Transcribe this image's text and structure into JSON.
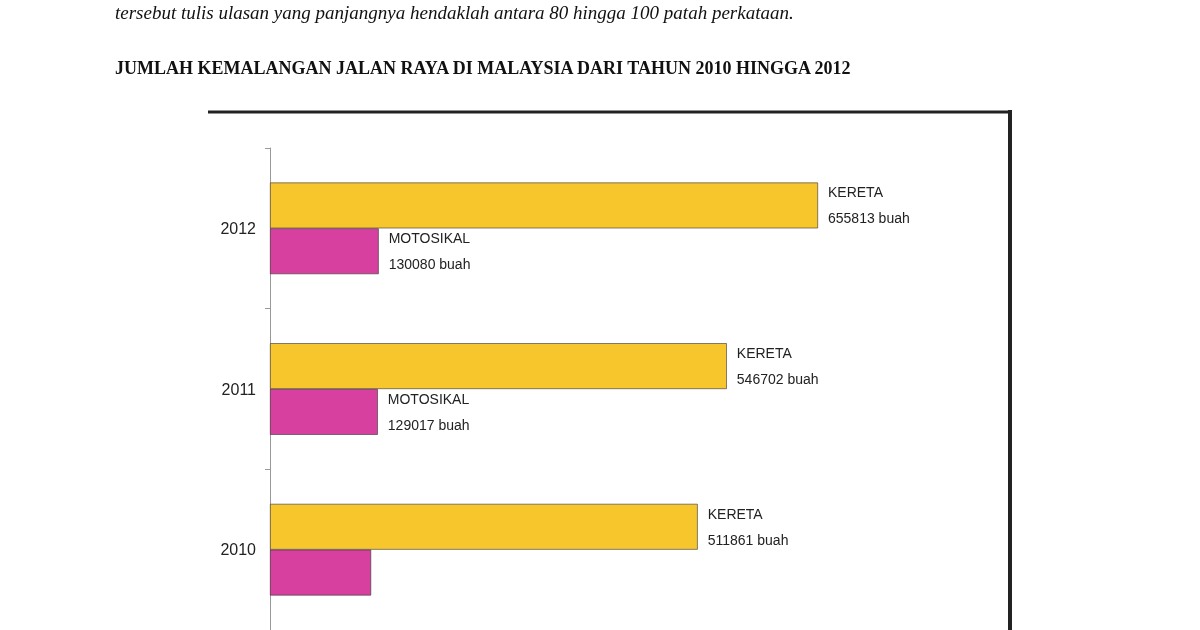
{
  "chart_data": {
    "type": "bar",
    "orientation": "horizontal",
    "title": "JUMLAH KEMALANGAN JALAN RAYA DI MALAYSIA DARI TAHUN 2010 HINGGA 2012",
    "annotations": [
      "tersebut tulis ulasan yang panjangnya hendaklah antara 80 hingga 100 patah perkataan."
    ],
    "categories": [
      "2012",
      "2011",
      "2010"
    ],
    "series": [
      {
        "name": "KERETA",
        "color": "#f7c52c",
        "values": [
          655813,
          546702,
          511861
        ],
        "value_labels": [
          "655813 buah",
          "546702 buah",
          "511861 buah"
        ]
      },
      {
        "name": "MOTOSIKAL",
        "color": "#d7409f",
        "values": [
          130080,
          129017,
          121000
        ],
        "value_labels": [
          "130080 buah",
          "129017 buah",
          null
        ]
      }
    ],
    "grid": false,
    "legend": false
  }
}
